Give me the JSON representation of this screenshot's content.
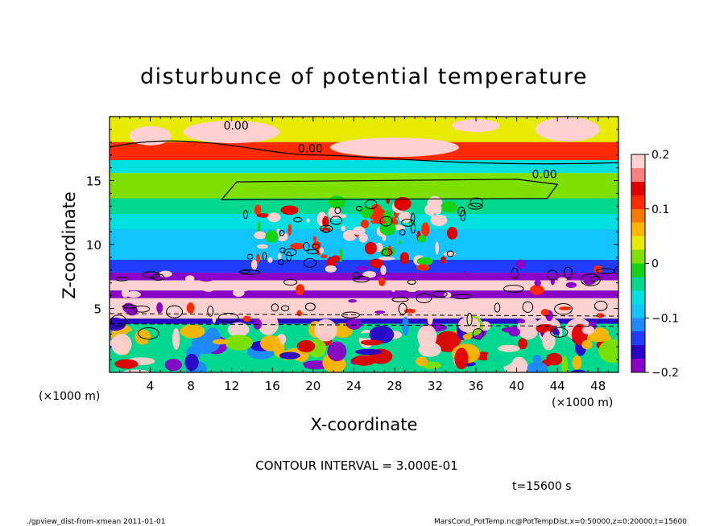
{
  "chart_data": {
    "type": "heatmap",
    "title": "disturbunce of potential temperature",
    "xlabel": "X-coordinate",
    "ylabel": "Z-coordinate",
    "x_unit_left": "(×1000 m)",
    "x_unit_right": "(×1000 m)",
    "xlim": [
      0,
      50
    ],
    "ylim": [
      0,
      20
    ],
    "xticks": [
      4,
      8,
      12,
      16,
      20,
      24,
      28,
      32,
      36,
      40,
      44,
      48
    ],
    "yticks": [
      5,
      10,
      15
    ],
    "colorbar": {
      "range": [
        -0.2,
        0.2
      ],
      "ticks": [
        {
          "value": 0.2,
          "label": "0.2"
        },
        {
          "value": 0.1,
          "label": "0.1"
        },
        {
          "value": 0,
          "label": "0"
        },
        {
          "value": -0.1,
          "label": "−0.1"
        },
        {
          "value": -0.2,
          "label": "−0.2"
        }
      ],
      "colors": [
        "#8a00c8",
        "#2a00c8",
        "#1f3cff",
        "#1e88ff",
        "#13c4ff",
        "#00e0e0",
        "#00d890",
        "#14d214",
        "#7fe000",
        "#e8ea00",
        "#ffb400",
        "#ff7800",
        "#ff2a00",
        "#e00000",
        "#ff8080",
        "#ffd0d0"
      ]
    },
    "bands": [
      {
        "z": [
          18.0,
          20.0
        ],
        "value": 0.03
      },
      {
        "z": [
          16.6,
          18.0
        ],
        "value": 0.12
      },
      {
        "z": [
          15.6,
          16.6
        ],
        "value": -0.06
      },
      {
        "z": [
          13.6,
          15.6
        ],
        "value": 0.0
      },
      {
        "z": [
          12.4,
          13.6
        ],
        "value": -0.03
      },
      {
        "z": [
          11.2,
          12.4
        ],
        "value": -0.07
      },
      {
        "z": [
          10.0,
          11.2
        ],
        "value": -0.1
      },
      {
        "z": [
          8.8,
          10.0
        ],
        "value": -0.08
      },
      {
        "z": [
          7.8,
          8.8
        ],
        "value": -0.13
      },
      {
        "z": [
          7.2,
          7.8
        ],
        "value": -0.21
      },
      {
        "z": [
          6.4,
          7.2
        ],
        "value": 0.2
      },
      {
        "z": [
          5.8,
          6.4
        ],
        "value": -0.19
      },
      {
        "z": [
          4.2,
          5.8
        ],
        "value": 0.18
      },
      {
        "z": [
          3.8,
          4.2
        ],
        "value": -0.16
      },
      {
        "z": [
          0.0,
          3.8
        ],
        "value": -0.04
      }
    ],
    "contour_labels": [
      {
        "x": 11.2,
        "z": 19.0,
        "text": "0.00"
      },
      {
        "x": 18.5,
        "z": 17.2,
        "text": "0.00"
      },
      {
        "x": 41.5,
        "z": 15.2,
        "text": "0.00"
      }
    ],
    "contour_interval_text": "CONTOUR INTERVAL = 3.000E-01",
    "time_text": "t=15600 s"
  },
  "footer": {
    "left": "./gpview_dist-from-xmean  2011-01-01",
    "right": "MarsCond_PotTemp.nc@PotTempDist,x=0:50000,z=0:20000,t=15600"
  }
}
